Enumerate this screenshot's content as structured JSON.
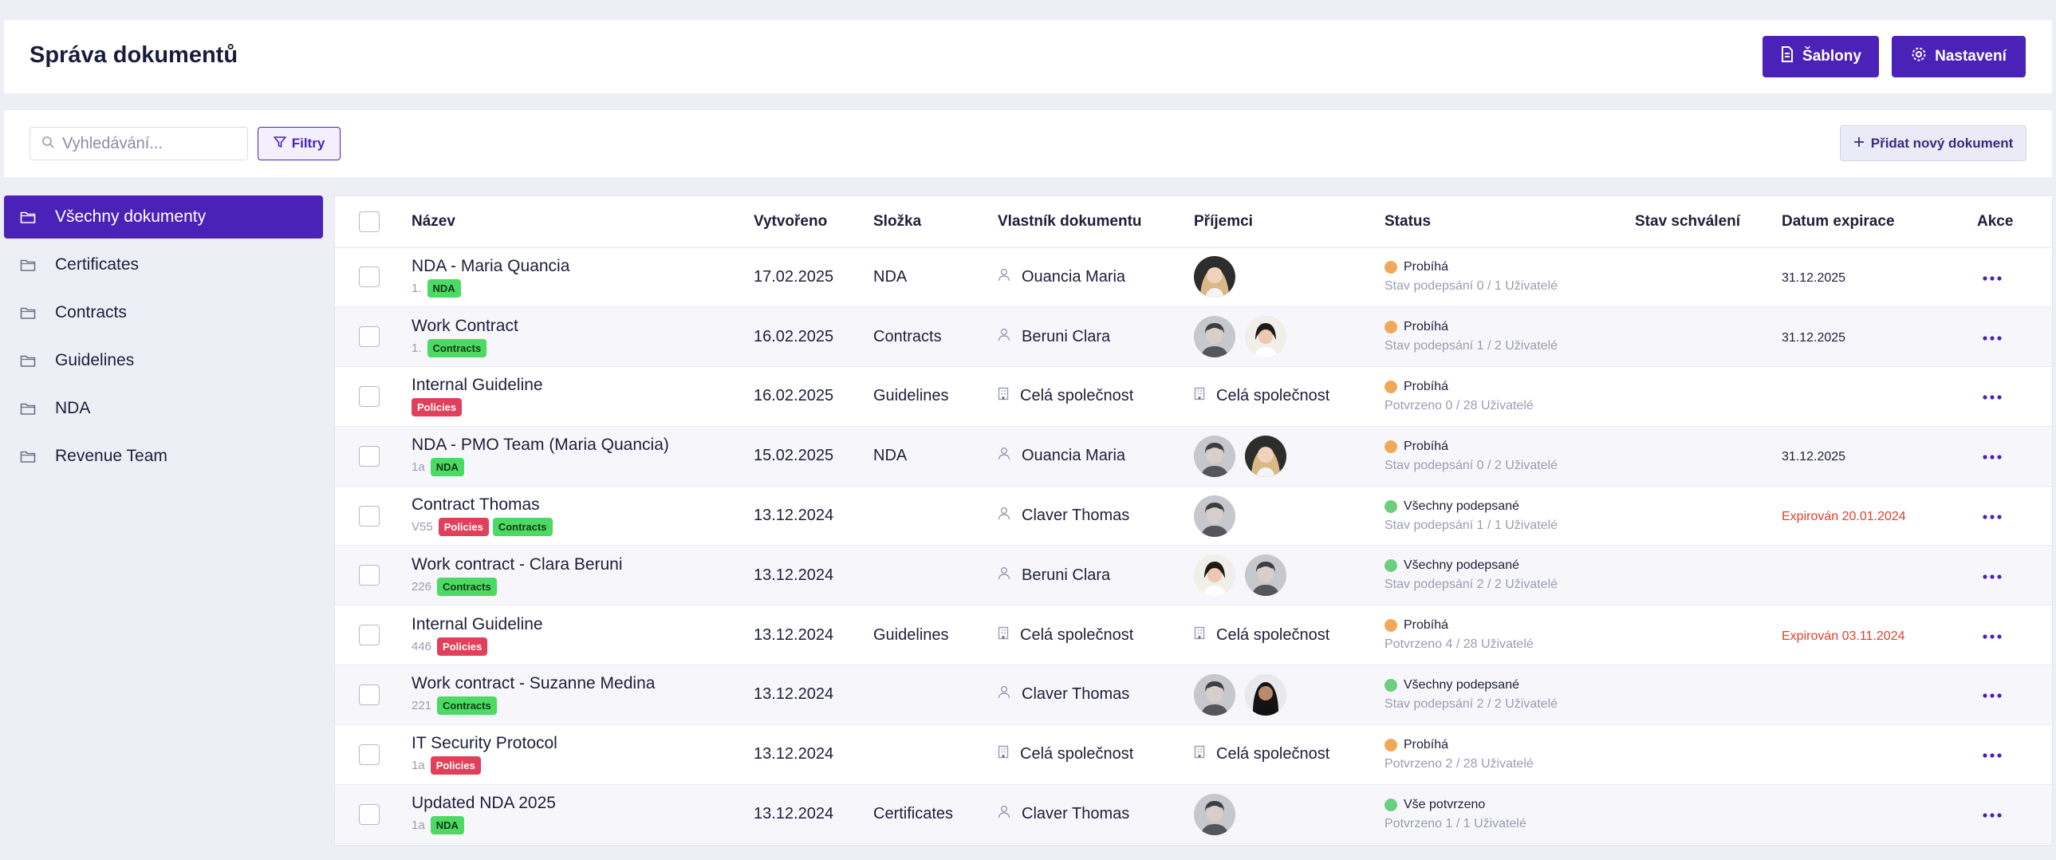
{
  "header": {
    "title": "Správa dokumentů",
    "templates_label": "Šablony",
    "settings_label": "Nastavení"
  },
  "toolbar": {
    "search_placeholder": "Vyhledávání...",
    "filters_label": "Filtry",
    "add_label": "Přidat nový dokument"
  },
  "sidebar": {
    "items": [
      {
        "label": "Všechny dokumenty",
        "active": true
      },
      {
        "label": "Certificates"
      },
      {
        "label": "Contracts"
      },
      {
        "label": "Guidelines"
      },
      {
        "label": "NDA"
      },
      {
        "label": "Revenue Team"
      }
    ]
  },
  "table": {
    "columns": {
      "name": "Název",
      "created": "Vytvořeno",
      "folder": "Složka",
      "owner": "Vlastník dokumentu",
      "recipients": "Příjemci",
      "status": "Status",
      "approval": "Stav schválení",
      "expiry": "Datum expirace",
      "actions": "Akce"
    },
    "rows": [
      {
        "name": "NDA - Maria Quancia",
        "version": "1.",
        "tags": [
          "NDA"
        ],
        "created": "17.02.2025",
        "folder": "NDA",
        "owner": "Ouancia Maria",
        "owner_type": "user",
        "recipients": [
          "f-blonde"
        ],
        "status": "Probíhá",
        "status_color": "orange",
        "status_sub": "Stav podepsání 0 / 1 Uživatelé",
        "expiry": "31.12.2025",
        "expired": false
      },
      {
        "name": "Work Contract",
        "version": "1.",
        "tags": [
          "Contracts"
        ],
        "created": "16.02.2025",
        "folder": "Contracts",
        "owner": "Beruni Clara",
        "owner_type": "user",
        "recipients": [
          "m-grey",
          "f-dark"
        ],
        "status": "Probíhá",
        "status_color": "orange",
        "status_sub": "Stav podepsání 1 / 2 Uživatelé",
        "expiry": "31.12.2025",
        "expired": false
      },
      {
        "name": "Internal Guideline",
        "version": "",
        "tags": [
          "Policies"
        ],
        "created": "16.02.2025",
        "folder": "Guidelines",
        "owner": "Celá společnost",
        "owner_type": "company",
        "recipients_text": "Celá společnost",
        "status": "Probíhá",
        "status_color": "orange",
        "status_sub": "Potvrzeno 0 / 28 Uživatelé",
        "expiry": "",
        "expired": false
      },
      {
        "name": "NDA - PMO Team (Maria Quancia)",
        "version": "1a",
        "tags": [
          "NDA"
        ],
        "created": "15.02.2025",
        "folder": "NDA",
        "owner": "Ouancia Maria",
        "owner_type": "user",
        "recipients": [
          "m-grey",
          "f-blonde"
        ],
        "status": "Probíhá",
        "status_color": "orange",
        "status_sub": "Stav podepsání 0 / 2 Uživatelé",
        "expiry": "31.12.2025",
        "expired": false
      },
      {
        "name": "Contract Thomas",
        "version": "V55",
        "tags": [
          "Policies",
          "Contracts"
        ],
        "created": "13.12.2024",
        "folder": "",
        "owner": "Claver Thomas",
        "owner_type": "user",
        "recipients": [
          "m-grey"
        ],
        "status": "Všechny podepsané",
        "status_color": "green",
        "status_sub": "Stav podepsání 1 / 1 Uživatelé",
        "expiry": "Expirován 20.01.2024",
        "expired": true
      },
      {
        "name": "Work contract - Clara Beruni",
        "version": "226",
        "tags": [
          "Contracts"
        ],
        "created": "13.12.2024",
        "folder": "",
        "owner": "Beruni Clara",
        "owner_type": "user",
        "recipients": [
          "f-dark",
          "m-grey"
        ],
        "status": "Všechny podepsané",
        "status_color": "green",
        "status_sub": "Stav podepsání 2 / 2 Uživatelé",
        "expiry": "",
        "expired": false
      },
      {
        "name": "Internal Guideline",
        "version": "446",
        "tags": [
          "Policies"
        ],
        "created": "13.12.2024",
        "folder": "Guidelines",
        "owner": "Celá společnost",
        "owner_type": "company",
        "recipients_text": "Celá společnost",
        "status": "Probíhá",
        "status_color": "orange",
        "status_sub": "Potvrzeno 4 / 28 Uživatelé",
        "expiry": "Expirován 03.11.2024",
        "expired": true
      },
      {
        "name": "Work contract - Suzanne Medina",
        "version": "221",
        "tags": [
          "Contracts"
        ],
        "created": "13.12.2024",
        "folder": "",
        "owner": "Claver Thomas",
        "owner_type": "user",
        "recipients": [
          "m-grey",
          "f-black"
        ],
        "status": "Všechny podepsané",
        "status_color": "green",
        "status_sub": "Stav podepsání 2 / 2 Uživatelé",
        "expiry": "",
        "expired": false
      },
      {
        "name": "IT Security Protocol",
        "version": "1a",
        "tags": [
          "Policies"
        ],
        "created": "13.12.2024",
        "folder": "",
        "owner": "Celá společnost",
        "owner_type": "company",
        "recipients_text": "Celá společnost",
        "status": "Probíhá",
        "status_color": "orange",
        "status_sub": "Potvrzeno 2 / 28 Uživatelé",
        "expiry": "",
        "expired": false
      },
      {
        "name": "Updated NDA 2025",
        "version": "1a",
        "tags": [
          "NDA"
        ],
        "created": "13.12.2024",
        "folder": "Certificates",
        "owner": "Claver Thomas",
        "owner_type": "user",
        "recipients": [
          "m-grey"
        ],
        "status": "Vše potvrzeno",
        "status_color": "green",
        "status_sub": "Potvrzeno 1 / 1 Uživatelé",
        "expiry": "",
        "expired": false
      }
    ]
  },
  "colors": {
    "accent": "#4b22b8",
    "status_orange": "#f1a959",
    "status_green": "#6ccf7f",
    "expired": "#e0402c",
    "tag_green": "#4cd964",
    "tag_red": "#e0405a"
  }
}
